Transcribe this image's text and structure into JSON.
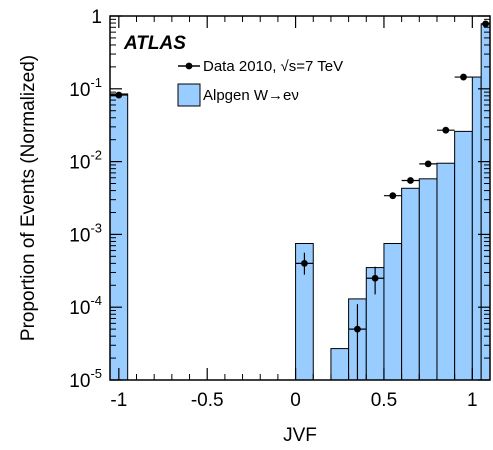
{
  "chart_data": {
    "type": "bar",
    "xlabel": "JVF",
    "ylabel": "Proportion of Events (Normalized)",
    "xlim": [
      -1.05,
      1.1
    ],
    "ylim": [
      1e-05,
      1
    ],
    "yscale": "log",
    "grid": false,
    "legend_position": "top-left",
    "experiment_label": "ATLAS",
    "x_ticks": [
      {
        "value": -1,
        "label": "-1"
      },
      {
        "value": -0.5,
        "label": "-0.5"
      },
      {
        "value": 0,
        "label": "0"
      },
      {
        "value": 0.5,
        "label": "0.5"
      },
      {
        "value": 1,
        "label": "1"
      }
    ],
    "y_ticks": [
      {
        "value": 1e-05,
        "base": "10",
        "exp": "-5"
      },
      {
        "value": 0.0001,
        "base": "10",
        "exp": "-4"
      },
      {
        "value": 0.001,
        "base": "10",
        "exp": "-3"
      },
      {
        "value": 0.01,
        "base": "10",
        "exp": "-2"
      },
      {
        "value": 0.1,
        "base": "10",
        "exp": "-1"
      },
      {
        "value": 1,
        "base": "1",
        "exp": ""
      }
    ],
    "series": [
      {
        "name": "Alpgen W→eν",
        "kind": "histogram",
        "color": "#99ccff",
        "bins": [
          {
            "x0": -1.05,
            "x1": -0.95,
            "value": 0.085
          },
          {
            "x0": 0.0,
            "x1": 0.1,
            "value": 0.00075
          },
          {
            "x0": 0.2,
            "x1": 0.3,
            "value": 2.7e-05
          },
          {
            "x0": 0.3,
            "x1": 0.4,
            "value": 0.00013
          },
          {
            "x0": 0.4,
            "x1": 0.5,
            "value": 0.00035
          },
          {
            "x0": 0.5,
            "x1": 0.6,
            "value": 0.00075
          },
          {
            "x0": 0.6,
            "x1": 0.7,
            "value": 0.0043
          },
          {
            "x0": 0.7,
            "x1": 0.8,
            "value": 0.0058
          },
          {
            "x0": 0.8,
            "x1": 0.9,
            "value": 0.0095
          },
          {
            "x0": 0.9,
            "x1": 1.0,
            "value": 0.026
          },
          {
            "x0": 1.0,
            "x1": 1.05,
            "value": 0.145
          },
          {
            "x0": 1.05,
            "x1": 1.1,
            "value": 0.78
          }
        ]
      },
      {
        "name": "Data 2010, √s=7 TeV",
        "kind": "points",
        "color": "#000000",
        "points": [
          {
            "x": -1.0,
            "y": 0.082,
            "xerr": 0.05,
            "ylo": 0.078,
            "yhi": 0.086
          },
          {
            "x": 0.05,
            "y": 0.0004,
            "xerr": 0.05,
            "ylo": 0.00028,
            "yhi": 0.00056
          },
          {
            "x": 0.35,
            "y": 5e-05,
            "xerr": 0.05,
            "ylo": 1e-05,
            "yhi": 0.00011
          },
          {
            "x": 0.45,
            "y": 0.00025,
            "xerr": 0.05,
            "ylo": 0.00015,
            "yhi": 0.00036
          },
          {
            "x": 0.55,
            "y": 0.0034,
            "xerr": 0.05,
            "ylo": 0.0032,
            "yhi": 0.0036
          },
          {
            "x": 0.65,
            "y": 0.0055,
            "xerr": 0.05,
            "ylo": 0.0053,
            "yhi": 0.0057
          },
          {
            "x": 0.75,
            "y": 0.0093,
            "xerr": 0.05,
            "ylo": 0.009,
            "yhi": 0.0096
          },
          {
            "x": 0.85,
            "y": 0.027,
            "xerr": 0.05,
            "ylo": 0.026,
            "yhi": 0.028
          },
          {
            "x": 0.95,
            "y": 0.145,
            "xerr": 0.05,
            "ylo": 0.142,
            "yhi": 0.148
          },
          {
            "x": 1.075,
            "y": 0.78,
            "xerr": 0.025,
            "ylo": 0.77,
            "yhi": 0.79
          }
        ]
      }
    ]
  }
}
